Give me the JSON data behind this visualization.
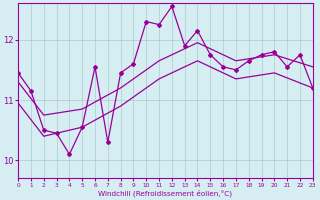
{
  "xlabel": "Windchill (Refroidissement éolien,°C)",
  "background_color": "#d6eef2",
  "line_color": "#990099",
  "grid_color": "#aacccc",
  "xlim": [
    0,
    23
  ],
  "ylim": [
    9.7,
    12.6
  ],
  "yticks": [
    10,
    11,
    12
  ],
  "xticks": [
    0,
    1,
    2,
    3,
    4,
    5,
    6,
    7,
    8,
    9,
    10,
    11,
    12,
    13,
    14,
    15,
    16,
    17,
    18,
    19,
    20,
    21,
    22,
    23
  ],
  "main_line": {
    "x": [
      0,
      1,
      2,
      3,
      4,
      5,
      6,
      7,
      8,
      9,
      10,
      11,
      12,
      13,
      14,
      15,
      16,
      17,
      18,
      19,
      20,
      21,
      22,
      23
    ],
    "y": [
      11.45,
      11.15,
      10.5,
      10.45,
      10.1,
      10.55,
      11.55,
      10.3,
      11.45,
      11.6,
      12.3,
      12.25,
      12.55,
      11.9,
      12.15,
      11.75,
      11.55,
      11.5,
      11.65,
      11.75,
      11.8,
      11.55,
      11.75,
      11.2
    ]
  },
  "upper_line": {
    "x": [
      0,
      2,
      5,
      8,
      11,
      14,
      17,
      20,
      23
    ],
    "y": [
      11.3,
      10.75,
      10.85,
      11.2,
      11.65,
      11.95,
      11.65,
      11.75,
      11.55
    ]
  },
  "lower_line": {
    "x": [
      0,
      2,
      5,
      8,
      11,
      14,
      17,
      20,
      23
    ],
    "y": [
      10.95,
      10.4,
      10.55,
      10.9,
      11.35,
      11.65,
      11.35,
      11.45,
      11.2
    ]
  }
}
